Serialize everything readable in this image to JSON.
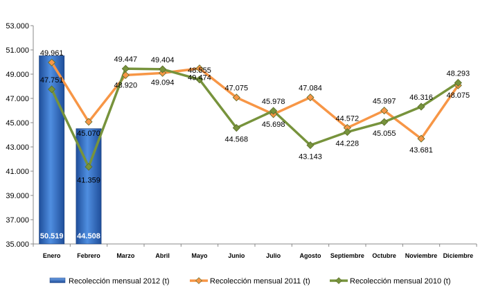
{
  "chart_data": {
    "type": "bar+line",
    "categories": [
      "Enero",
      "Febrero",
      "Marzo",
      "Abril",
      "Mayo",
      "Junio",
      "Julio",
      "Agosto",
      "Septiembre",
      "Octubre",
      "Noviembre",
      "Diciembre"
    ],
    "ylim": [
      35000,
      53000
    ],
    "yticks": [
      35000,
      37000,
      39000,
      41000,
      43000,
      45000,
      47000,
      49000,
      51000,
      53000
    ],
    "ytick_labels": [
      "35.000",
      "37.000",
      "39.000",
      "41.000",
      "43.000",
      "45.000",
      "47.000",
      "49.000",
      "51.000",
      "53.000"
    ],
    "grid": false,
    "legend_position": "bottom",
    "series": [
      {
        "name": "Recolección mensual 2012 (t)",
        "type": "bar",
        "color": "#2f6fc1",
        "values": [
          50519,
          44508,
          null,
          null,
          null,
          null,
          null,
          null,
          null,
          null,
          null,
          null
        ],
        "labels": [
          "50.519",
          "44.508",
          "",
          "",
          "",
          "",
          "",
          "",
          "",
          "",
          "",
          ""
        ]
      },
      {
        "name": "Recolección mensual 2011 (t)",
        "type": "line",
        "color": "#f79646",
        "values": [
          49961,
          45070,
          48920,
          49094,
          49474,
          47075,
          45698,
          47084,
          44572,
          45997,
          43681,
          48075
        ],
        "labels": [
          "49.961",
          "45.070",
          "48.920",
          "49.094",
          "49.474",
          "47.075",
          "45.698",
          "47.084",
          "44.572",
          "45.997",
          "43.681",
          "48.075"
        ]
      },
      {
        "name": "Recolección mensual 2010 (t)",
        "type": "line",
        "color": "#77933c",
        "values": [
          47751,
          41359,
          49447,
          49404,
          48555,
          44568,
          45978,
          43143,
          44228,
          45055,
          46316,
          48293
        ],
        "labels": [
          "47.751",
          "41.359",
          "49.447",
          "49.404",
          "48.555",
          "44.568",
          "45.978",
          "43.143",
          "44.228",
          "45.055",
          "46.316",
          "48.293"
        ]
      }
    ]
  }
}
